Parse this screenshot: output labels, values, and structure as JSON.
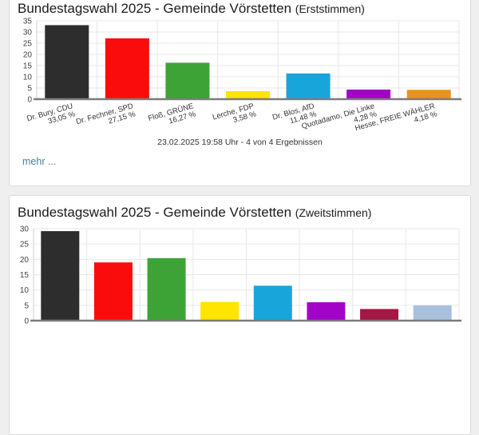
{
  "erststimmen_card": {
    "title_main": "Bundestagswahl 2025 - Gemeinde Vörstetten",
    "title_sub": "(Erststimmen)",
    "footer_note": "23.02.2025 19:58 Uhr - 4 von 4 Ergebnissen",
    "more_link_label": "mehr ..."
  },
  "zweitstimmen_card": {
    "title_main": "Bundestagswahl 2025 - Gemeinde Vörstetten",
    "title_sub": "(Zweitstimmen)"
  },
  "chart_data": [
    {
      "type": "bar",
      "title": "Bundestagswahl 2025 - Gemeinde Vörstetten (Erststimmen)",
      "categories": [
        "Dr. Bury, CDU",
        "Dr. Fechner, SPD",
        "Floß, GRÜNE",
        "Lerche, FDP",
        "Dr. Blos, AfD",
        "Quotadamo, Die Linke",
        "Hesse, FREIE WÄHLER"
      ],
      "value_labels": [
        "33,05 %",
        "27,15 %",
        "16,27 %",
        "3,58 %",
        "11,48 %",
        "4,28 %",
        "4,18 %"
      ],
      "values": [
        33.05,
        27.15,
        16.27,
        3.58,
        11.48,
        4.28,
        4.18
      ],
      "colors": [
        "#2d2d2d",
        "#fb0c0c",
        "#3da336",
        "#ffe500",
        "#18a5d9",
        "#a303c6",
        "#e8931c"
      ],
      "xlabel": "",
      "ylabel": "",
      "ylim": [
        0,
        35
      ],
      "ytick_step": 5,
      "grid": true,
      "legend": "none",
      "x_labels_visible": true
    },
    {
      "type": "bar",
      "title": "Bundestagswahl 2025 - Gemeinde Vörstetten (Zweitstimmen)",
      "categories": [
        "",
        "",
        "",
        "",
        "",
        "",
        "",
        ""
      ],
      "values": [
        29.2,
        19.0,
        20.4,
        6.1,
        11.4,
        6.0,
        3.8,
        5.0
      ],
      "colors": [
        "#2d2d2d",
        "#fb0c0c",
        "#3da336",
        "#ffe500",
        "#18a5d9",
        "#a303c6",
        "#a51744",
        "#a9c0dd"
      ],
      "xlabel": "",
      "ylabel": "",
      "ylim": [
        0,
        30
      ],
      "ytick_step": 5,
      "grid": true,
      "legend": "none",
      "x_labels_visible": false
    }
  ]
}
